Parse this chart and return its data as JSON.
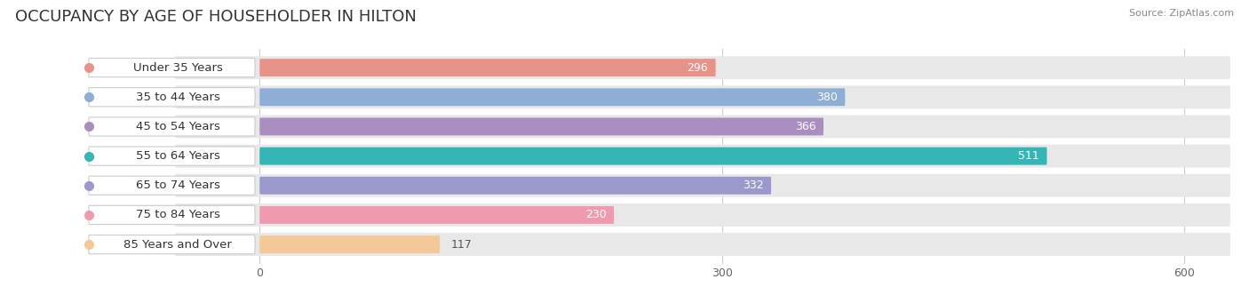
{
  "title": "OCCUPANCY BY AGE OF HOUSEHOLDER IN HILTON",
  "source": "Source: ZipAtlas.com",
  "categories": [
    "Under 35 Years",
    "35 to 44 Years",
    "45 to 54 Years",
    "55 to 64 Years",
    "65 to 74 Years",
    "75 to 84 Years",
    "85 Years and Over"
  ],
  "values": [
    296,
    380,
    366,
    511,
    332,
    230,
    117
  ],
  "bar_colors": [
    "#E8938A",
    "#8FAED6",
    "#AA8EC0",
    "#35B5B5",
    "#9B98CC",
    "#F09AB0",
    "#F5C898"
  ],
  "background_color": "#ffffff",
  "row_bg_color": "#e8e8e8",
  "xlim": [
    -55,
    630
  ],
  "data_xlim": [
    0,
    600
  ],
  "xticks": [
    0,
    300,
    600
  ],
  "title_fontsize": 13,
  "label_fontsize": 9.5,
  "value_fontsize": 9,
  "value_inside_color": "#ffffff",
  "value_outside_color": "#555555",
  "label_text_color": "#333333",
  "inside_threshold": 200
}
